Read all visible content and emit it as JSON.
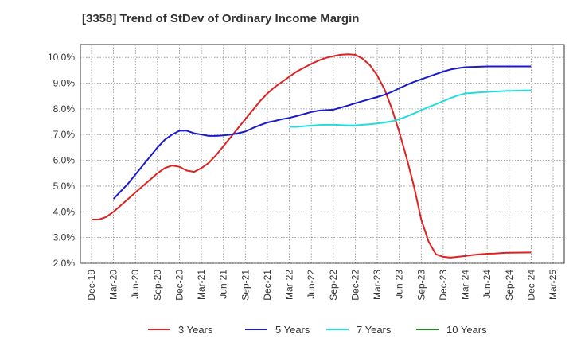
{
  "chart_data": {
    "type": "line",
    "title": "[3358]  Trend of StDev of Ordinary Income Margin",
    "xlabel": "",
    "ylabel": "",
    "ylim": [
      2.0,
      10.5
    ],
    "y_ticks": [
      "2.0%",
      "3.0%",
      "4.0%",
      "5.0%",
      "6.0%",
      "7.0%",
      "8.0%",
      "9.0%",
      "10.0%"
    ],
    "x_ticks": [
      "Dec-19",
      "Mar-20",
      "Jun-20",
      "Sep-20",
      "Dec-20",
      "Mar-21",
      "Jun-21",
      "Sep-21",
      "Dec-21",
      "Mar-22",
      "Jun-22",
      "Sep-22",
      "Dec-22",
      "Mar-23",
      "Jun-23",
      "Sep-23",
      "Dec-23",
      "Mar-24",
      "Jun-24",
      "Sep-24",
      "Dec-24",
      "Mar-25"
    ],
    "grid": true,
    "legend_position": "bottom",
    "series": [
      {
        "name": "3 Years",
        "color": "#dd2222",
        "points": [
          [
            "Dec-19",
            3.7
          ],
          [
            "Jan-20",
            3.7
          ],
          [
            "Feb-20",
            3.8
          ],
          [
            "Mar-20",
            4.0
          ],
          [
            "Apr-20",
            4.25
          ],
          [
            "May-20",
            4.5
          ],
          [
            "Jun-20",
            4.75
          ],
          [
            "Jul-20",
            5.0
          ],
          [
            "Aug-20",
            5.25
          ],
          [
            "Sep-20",
            5.5
          ],
          [
            "Oct-20",
            5.7
          ],
          [
            "Nov-20",
            5.8
          ],
          [
            "Dec-20",
            5.75
          ],
          [
            "Jan-21",
            5.6
          ],
          [
            "Feb-21",
            5.55
          ],
          [
            "Mar-21",
            5.7
          ],
          [
            "Apr-21",
            5.9
          ],
          [
            "May-21",
            6.2
          ],
          [
            "Jun-21",
            6.55
          ],
          [
            "Jul-21",
            6.9
          ],
          [
            "Aug-21",
            7.25
          ],
          [
            "Sep-21",
            7.6
          ],
          [
            "Oct-21",
            7.95
          ],
          [
            "Nov-21",
            8.3
          ],
          [
            "Dec-21",
            8.6
          ],
          [
            "Jan-22",
            8.85
          ],
          [
            "Feb-22",
            9.05
          ],
          [
            "Mar-22",
            9.25
          ],
          [
            "Apr-22",
            9.45
          ],
          [
            "May-22",
            9.6
          ],
          [
            "Jun-22",
            9.75
          ],
          [
            "Jul-22",
            9.88
          ],
          [
            "Aug-22",
            9.98
          ],
          [
            "Sep-22",
            10.05
          ],
          [
            "Oct-22",
            10.1
          ],
          [
            "Nov-22",
            10.12
          ],
          [
            "Dec-22",
            10.1
          ],
          [
            "Jan-23",
            9.95
          ],
          [
            "Feb-23",
            9.7
          ],
          [
            "Mar-23",
            9.3
          ],
          [
            "Apr-23",
            8.75
          ],
          [
            "May-23",
            8.0
          ],
          [
            "Jun-23",
            7.1
          ],
          [
            "Jul-23",
            6.1
          ],
          [
            "Aug-23",
            5.0
          ],
          [
            "Sep-23",
            3.7
          ],
          [
            "Oct-23",
            2.85
          ],
          [
            "Nov-23",
            2.35
          ],
          [
            "Dec-23",
            2.25
          ],
          [
            "Jan-24",
            2.22
          ],
          [
            "Feb-24",
            2.25
          ],
          [
            "Mar-24",
            2.28
          ],
          [
            "Apr-24",
            2.32
          ],
          [
            "May-24",
            2.35
          ],
          [
            "Jun-24",
            2.37
          ],
          [
            "Jul-24",
            2.38
          ],
          [
            "Aug-24",
            2.4
          ],
          [
            "Sep-24",
            2.41
          ],
          [
            "Dec-24",
            2.42
          ]
        ]
      },
      {
        "name": "5 Years",
        "color": "#1a1acc",
        "points": [
          [
            "Mar-20",
            4.5
          ],
          [
            "Apr-20",
            4.8
          ],
          [
            "May-20",
            5.1
          ],
          [
            "Jun-20",
            5.45
          ],
          [
            "Jul-20",
            5.8
          ],
          [
            "Aug-20",
            6.15
          ],
          [
            "Sep-20",
            6.5
          ],
          [
            "Oct-20",
            6.8
          ],
          [
            "Nov-20",
            7.0
          ],
          [
            "Dec-20",
            7.15
          ],
          [
            "Jan-21",
            7.15
          ],
          [
            "Feb-21",
            7.05
          ],
          [
            "Mar-21",
            7.0
          ],
          [
            "Apr-21",
            6.95
          ],
          [
            "May-21",
            6.95
          ],
          [
            "Jun-21",
            6.97
          ],
          [
            "Jul-21",
            7.0
          ],
          [
            "Aug-21",
            7.05
          ],
          [
            "Sep-21",
            7.12
          ],
          [
            "Oct-21",
            7.25
          ],
          [
            "Nov-21",
            7.37
          ],
          [
            "Dec-21",
            7.47
          ],
          [
            "Jan-22",
            7.53
          ],
          [
            "Feb-22",
            7.6
          ],
          [
            "Mar-22",
            7.65
          ],
          [
            "Apr-22",
            7.72
          ],
          [
            "May-22",
            7.8
          ],
          [
            "Jun-22",
            7.88
          ],
          [
            "Jul-22",
            7.93
          ],
          [
            "Aug-22",
            7.95
          ],
          [
            "Sep-22",
            7.97
          ],
          [
            "Oct-22",
            8.05
          ],
          [
            "Nov-22",
            8.13
          ],
          [
            "Dec-22",
            8.22
          ],
          [
            "Jan-23",
            8.3
          ],
          [
            "Feb-23",
            8.38
          ],
          [
            "Mar-23",
            8.46
          ],
          [
            "Apr-23",
            8.55
          ],
          [
            "May-23",
            8.66
          ],
          [
            "Jun-23",
            8.8
          ],
          [
            "Jul-23",
            8.93
          ],
          [
            "Aug-23",
            9.05
          ],
          [
            "Sep-23",
            9.15
          ],
          [
            "Oct-23",
            9.25
          ],
          [
            "Nov-23",
            9.35
          ],
          [
            "Dec-23",
            9.45
          ],
          [
            "Jan-24",
            9.53
          ],
          [
            "Feb-24",
            9.58
          ],
          [
            "Mar-24",
            9.62
          ],
          [
            "Jun-24",
            9.65
          ],
          [
            "Sep-24",
            9.65
          ],
          [
            "Dec-24",
            9.65
          ]
        ]
      },
      {
        "name": "7 Years",
        "color": "#22dddd",
        "points": [
          [
            "Mar-22",
            7.3
          ],
          [
            "Apr-22",
            7.3
          ],
          [
            "May-22",
            7.33
          ],
          [
            "Jun-22",
            7.35
          ],
          [
            "Jul-22",
            7.37
          ],
          [
            "Aug-22",
            7.38
          ],
          [
            "Sep-22",
            7.38
          ],
          [
            "Oct-22",
            7.37
          ],
          [
            "Nov-22",
            7.36
          ],
          [
            "Dec-22",
            7.36
          ],
          [
            "Jan-23",
            7.38
          ],
          [
            "Feb-23",
            7.4
          ],
          [
            "Mar-23",
            7.43
          ],
          [
            "Apr-23",
            7.47
          ],
          [
            "May-23",
            7.52
          ],
          [
            "Jun-23",
            7.6
          ],
          [
            "Jul-23",
            7.7
          ],
          [
            "Aug-23",
            7.82
          ],
          [
            "Sep-23",
            7.95
          ],
          [
            "Oct-23",
            8.07
          ],
          [
            "Nov-23",
            8.18
          ],
          [
            "Dec-23",
            8.3
          ],
          [
            "Jan-24",
            8.42
          ],
          [
            "Feb-24",
            8.52
          ],
          [
            "Mar-24",
            8.6
          ],
          [
            "Jun-24",
            8.66
          ],
          [
            "Sep-24",
            8.7
          ],
          [
            "Dec-24",
            8.72
          ]
        ]
      },
      {
        "name": "10 Years",
        "color": "#228822",
        "points": []
      }
    ]
  }
}
